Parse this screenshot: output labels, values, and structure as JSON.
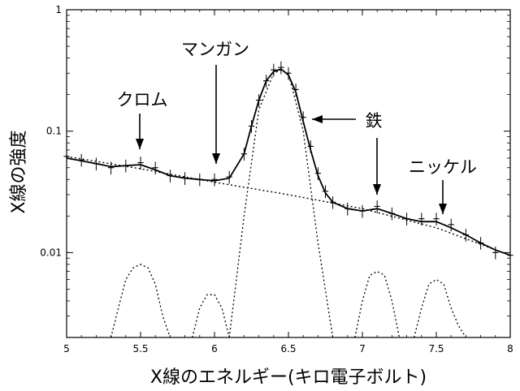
{
  "chart_data": {
    "type": "line",
    "xlabel": "X線のエネルギー(キロ電子ボルト)",
    "ylabel": "X線の強度",
    "xlim": [
      5,
      8
    ],
    "ylim": [
      0.002,
      1
    ],
    "yscale": "log",
    "grid": false,
    "x_ticks": [
      5,
      5.5,
      6,
      6.5,
      7,
      7.5,
      8
    ],
    "x_tick_labels": [
      "5",
      "5.5",
      "6",
      "6.5",
      "7",
      "7.5",
      "8"
    ],
    "y_ticks": [
      0.01,
      0.1,
      1
    ],
    "y_tick_labels": [
      "0.01",
      "0.1",
      "1"
    ],
    "annotations": [
      {
        "text": "クロム",
        "x": 5.5,
        "y": 0.06,
        "arrow": "down"
      },
      {
        "text": "マンガン",
        "x": 6.0,
        "y": 0.045,
        "arrow": "down"
      },
      {
        "text": "鉄",
        "x": 6.65,
        "y": 0.11,
        "arrow": "left"
      },
      {
        "text": "ニッケル",
        "x": 7.55,
        "y": 0.02,
        "arrow": "down"
      },
      {
        "text": "ニッケル",
        "x": 7.1,
        "y": 0.028,
        "arrow": "down"
      }
    ],
    "series": [
      {
        "style": "data-steps",
        "x": [
          5.0,
          5.1,
          5.2,
          5.3,
          5.4,
          5.5,
          5.6,
          5.7,
          5.8,
          5.9,
          6.0,
          6.1,
          6.2,
          6.25,
          6.3,
          6.35,
          6.4,
          6.45,
          6.5,
          6.55,
          6.6,
          6.65,
          6.7,
          6.75,
          6.8,
          6.9,
          7.0,
          7.1,
          7.2,
          7.3,
          7.4,
          7.5,
          7.6,
          7.7,
          7.8,
          7.9,
          8.0
        ],
        "y": [
          0.062,
          0.058,
          0.054,
          0.05,
          0.052,
          0.055,
          0.05,
          0.043,
          0.041,
          0.04,
          0.04,
          0.042,
          0.065,
          0.11,
          0.18,
          0.26,
          0.32,
          0.335,
          0.3,
          0.22,
          0.13,
          0.075,
          0.045,
          0.032,
          0.026,
          0.023,
          0.022,
          0.024,
          0.021,
          0.019,
          0.019,
          0.019,
          0.017,
          0.014,
          0.012,
          0.01,
          0.0095
        ]
      },
      {
        "style": "fit-line",
        "x": [
          5.0,
          5.1,
          5.2,
          5.3,
          5.4,
          5.5,
          5.6,
          5.7,
          5.8,
          5.9,
          6.0,
          6.1,
          6.2,
          6.25,
          6.3,
          6.35,
          6.4,
          6.45,
          6.5,
          6.55,
          6.6,
          6.65,
          6.7,
          6.75,
          6.8,
          6.9,
          7.0,
          7.1,
          7.2,
          7.3,
          7.4,
          7.5,
          7.6,
          7.7,
          7.8,
          7.9,
          8.0
        ],
        "y": [
          0.06,
          0.057,
          0.054,
          0.051,
          0.052,
          0.053,
          0.048,
          0.043,
          0.041,
          0.04,
          0.039,
          0.041,
          0.065,
          0.11,
          0.18,
          0.26,
          0.31,
          0.325,
          0.29,
          0.21,
          0.12,
          0.07,
          0.043,
          0.031,
          0.026,
          0.023,
          0.022,
          0.023,
          0.021,
          0.019,
          0.018,
          0.018,
          0.016,
          0.014,
          0.012,
          0.0105,
          0.0095
        ]
      },
      {
        "style": "continuum-dotted",
        "x": [
          5.0,
          5.5,
          6.0,
          6.5,
          7.0,
          7.5,
          8.0
        ],
        "y": [
          0.062,
          0.049,
          0.038,
          0.03,
          0.023,
          0.016,
          0.0095
        ]
      },
      {
        "style": "peak-dotted",
        "x": [
          5.3,
          5.35,
          5.4,
          5.45,
          5.5,
          5.55,
          5.6,
          5.65,
          5.7
        ],
        "y": [
          0.002,
          0.0035,
          0.006,
          0.0075,
          0.008,
          0.0075,
          0.0055,
          0.003,
          0.002
        ]
      },
      {
        "style": "peak-dotted",
        "x": [
          5.85,
          5.9,
          5.95,
          6.0,
          6.05,
          6.1
        ],
        "y": [
          0.002,
          0.0035,
          0.0045,
          0.0045,
          0.0035,
          0.002
        ]
      },
      {
        "style": "peak-dotted",
        "x": [
          6.1,
          6.2,
          6.3,
          6.4,
          6.45,
          6.5,
          6.6,
          6.7,
          6.8
        ],
        "y": [
          0.002,
          0.02,
          0.15,
          0.3,
          0.32,
          0.3,
          0.1,
          0.012,
          0.002
        ]
      },
      {
        "style": "peak-dotted",
        "x": [
          6.95,
          7.0,
          7.05,
          7.1,
          7.15,
          7.2,
          7.25
        ],
        "y": [
          0.002,
          0.004,
          0.0065,
          0.007,
          0.0065,
          0.004,
          0.002
        ]
      },
      {
        "style": "peak-dotted",
        "x": [
          7.35,
          7.4,
          7.45,
          7.5,
          7.55,
          7.6,
          7.65,
          7.7
        ],
        "y": [
          0.002,
          0.0035,
          0.0055,
          0.006,
          0.0055,
          0.0035,
          0.0025,
          0.002
        ]
      }
    ]
  }
}
